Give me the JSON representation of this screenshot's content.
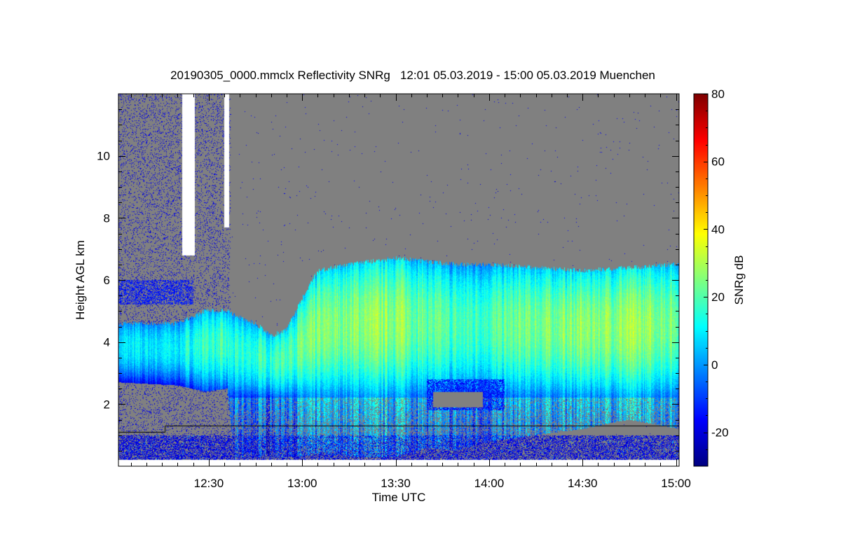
{
  "title": "20190305_0000.mmclx Reflectivity SNRg   12:01 05.03.2019 - 15:00 05.03.2019 Muenchen",
  "chart_data": {
    "type": "heatmap",
    "title": "20190305_0000.mmclx Reflectivity SNRg   12:01 05.03.2019 - 15:00 05.03.2019 Muenchen",
    "xlabel": "Time UTC",
    "ylabel": "Height AGL km",
    "colorbar_label": "SNRg dB",
    "xlim_minutes_after_1200": [
      1,
      181
    ],
    "ylim_km": [
      0,
      12
    ],
    "clim_db": [
      -30,
      80
    ],
    "x_ticks": [
      {
        "minute": 30,
        "label": "12:30"
      },
      {
        "minute": 60,
        "label": "13:00"
      },
      {
        "minute": 90,
        "label": "13:30"
      },
      {
        "minute": 120,
        "label": "14:00"
      },
      {
        "minute": 150,
        "label": "14:30"
      },
      {
        "minute": 180,
        "label": "15:00"
      }
    ],
    "y_ticks": [
      {
        "value": 2,
        "label": "2"
      },
      {
        "value": 4,
        "label": "4"
      },
      {
        "value": 6,
        "label": "6"
      },
      {
        "value": 8,
        "label": "8"
      },
      {
        "value": 10,
        "label": "10"
      }
    ],
    "c_ticks": [
      {
        "value": -20,
        "label": "-20"
      },
      {
        "value": 0,
        "label": "0"
      },
      {
        "value": 20,
        "label": "20"
      },
      {
        "value": 40,
        "label": "40"
      },
      {
        "value": 60,
        "label": "60"
      },
      {
        "value": 80,
        "label": "80"
      }
    ],
    "colormap": "jet",
    "no_signal_color": "#808080",
    "missing_color": "#ffffff",
    "cloud_profile": {
      "minute": [
        1,
        20,
        29,
        36,
        38,
        45,
        50,
        55,
        60,
        65,
        75,
        90,
        100,
        110,
        120,
        135,
        150,
        165,
        181
      ],
      "top_km": [
        4.6,
        4.6,
        5.0,
        5.0,
        4.9,
        4.6,
        4.2,
        4.4,
        5.4,
        6.3,
        6.5,
        6.7,
        6.6,
        6.5,
        6.5,
        6.4,
        6.3,
        6.4,
        6.5
      ],
      "base_km": [
        2.7,
        2.6,
        2.4,
        2.5,
        0.3,
        0.3,
        0.3,
        0.3,
        0.3,
        0.4,
        0.3,
        0.3,
        0.6,
        0.5,
        0.8,
        1.0,
        1.2,
        1.5,
        1.2
      ],
      "peak_db": [
        12,
        14,
        22,
        20,
        18,
        20,
        22,
        25,
        26,
        28,
        30,
        32,
        26,
        22,
        24,
        28,
        30,
        32,
        28
      ]
    },
    "missing_intervals": [
      {
        "start_minute": 21.5,
        "end_minute": 25.5,
        "above_km": 6.8
      },
      {
        "start_minute": 35,
        "end_minute": 36.5,
        "above_km": 7.7
      }
    ],
    "reference_line_km": [
      {
        "from_minute": 1,
        "to_minute": 16,
        "km": 1.1
      },
      {
        "from_minute": 16,
        "to_minute": 181,
        "km": 1.3
      }
    ]
  }
}
